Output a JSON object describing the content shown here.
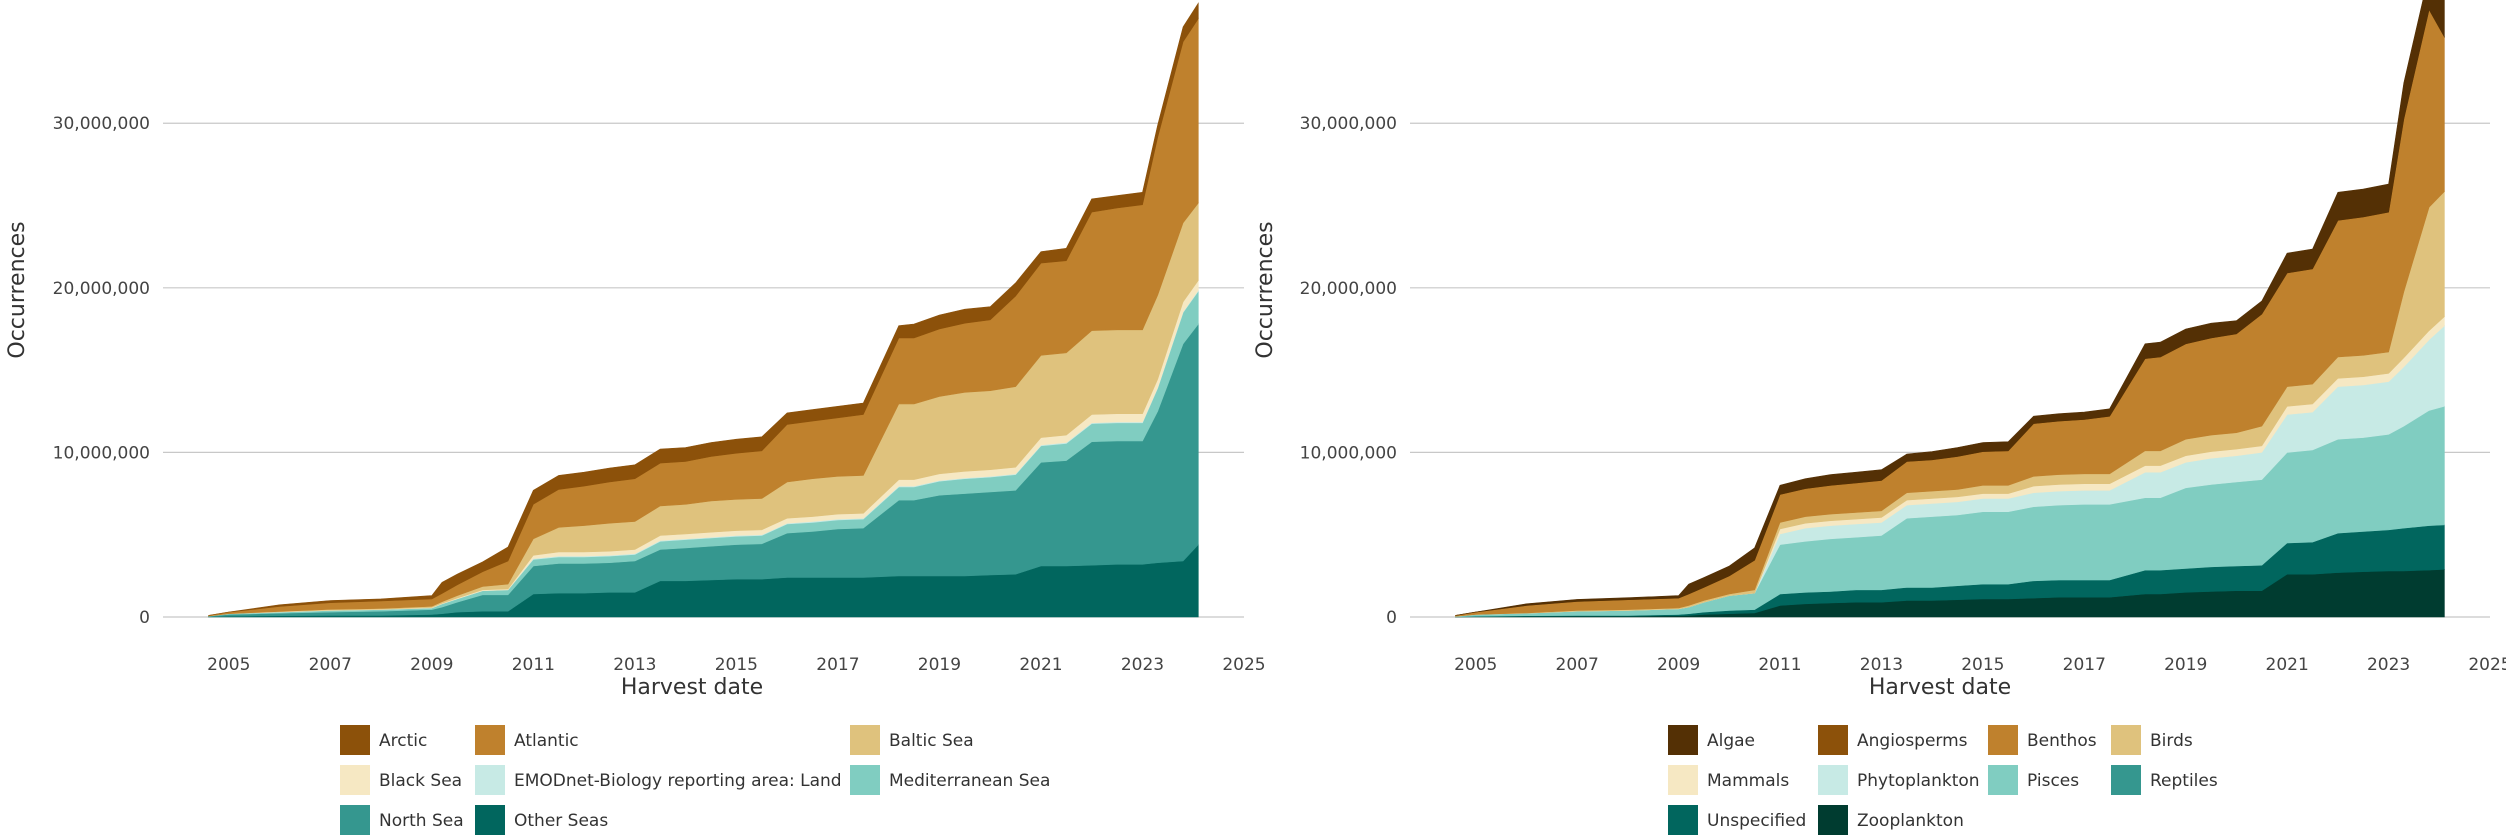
{
  "chart_data": [
    {
      "type": "area",
      "stacked": true,
      "title": "",
      "xlabel": "Harvest date",
      "ylabel": "Occurrences",
      "xlim": [
        2004,
        2025
      ],
      "ylim": [
        0,
        37000000
      ],
      "x_ticks": [
        2005,
        2007,
        2009,
        2011,
        2013,
        2015,
        2017,
        2019,
        2021,
        2023,
        2025
      ],
      "y_ticks": [
        0,
        10000000,
        20000000,
        30000000
      ],
      "y_tick_labels": [
        "0",
        "10,000,000",
        "20,000,000",
        "30,000,000"
      ],
      "grid": "horizontal",
      "legend": "bottom",
      "x": [
        2004.6,
        2005.0,
        2006.0,
        2007.0,
        2008.0,
        2009.0,
        2009.2,
        2009.5,
        2010.0,
        2010.5,
        2011.0,
        2011.5,
        2012.0,
        2012.5,
        2013.0,
        2013.5,
        2014.0,
        2014.5,
        2015.0,
        2015.5,
        2016.0,
        2016.5,
        2017.0,
        2017.5,
        2018.2,
        2018.5,
        2019.0,
        2019.5,
        2020.0,
        2020.5,
        2021.0,
        2021.5,
        2022.0,
        2022.5,
        2023.0,
        2023.3,
        2023.8,
        2024.1
      ],
      "series": [
        {
          "name": "Other Seas",
          "color": "#01665e",
          "values": [
            0.02,
            0.05,
            0.08,
            0.1,
            0.1,
            0.15,
            0.2,
            0.3,
            0.35,
            0.35,
            1.4,
            1.45,
            1.45,
            1.5,
            1.5,
            2.2,
            2.2,
            2.25,
            2.3,
            2.3,
            2.4,
            2.4,
            2.4,
            2.4,
            2.5,
            2.5,
            2.5,
            2.5,
            2.55,
            2.6,
            3.1,
            3.1,
            3.15,
            3.2,
            3.2,
            3.3,
            3.4,
            4.4
          ]
        },
        {
          "name": "North Sea",
          "color": "#35978f",
          "values": [
            0.03,
            0.1,
            0.15,
            0.2,
            0.25,
            0.3,
            0.4,
            0.6,
            1.0,
            1.0,
            1.7,
            1.8,
            1.8,
            1.8,
            1.9,
            1.9,
            2.0,
            2.05,
            2.1,
            2.15,
            2.7,
            2.8,
            2.95,
            3.0,
            4.6,
            4.6,
            4.9,
            5.0,
            5.05,
            5.1,
            6.3,
            6.4,
            7.5,
            7.5,
            7.5,
            9.2,
            13.2,
            13.4
          ]
        },
        {
          "name": "Mediterranean Sea",
          "color": "#80cdc1",
          "values": [
            0.01,
            0.05,
            0.07,
            0.1,
            0.1,
            0.1,
            0.2,
            0.2,
            0.25,
            0.3,
            0.4,
            0.4,
            0.4,
            0.4,
            0.4,
            0.5,
            0.5,
            0.5,
            0.5,
            0.5,
            0.55,
            0.55,
            0.55,
            0.55,
            0.8,
            0.8,
            0.85,
            0.9,
            0.9,
            0.95,
            1.0,
            1.05,
            1.1,
            1.1,
            1.1,
            1.4,
            1.9,
            2.0
          ]
        },
        {
          "name": "EMODnet-Biology reporting area: Land",
          "color": "#c7eae5",
          "values": [
            0.0,
            0.0,
            0.0,
            0.0,
            0.0,
            0.0,
            0.0,
            0.0,
            0.0,
            0.0,
            0.05,
            0.05,
            0.05,
            0.05,
            0.05,
            0.05,
            0.05,
            0.05,
            0.05,
            0.05,
            0.05,
            0.05,
            0.05,
            0.05,
            0.05,
            0.05,
            0.05,
            0.05,
            0.05,
            0.05,
            0.05,
            0.05,
            0.05,
            0.05,
            0.05,
            0.05,
            0.05,
            0.05
          ]
        },
        {
          "name": "Black Sea",
          "color": "#f6e8c3",
          "values": [
            0.0,
            0.0,
            0.02,
            0.02,
            0.02,
            0.03,
            0.03,
            0.05,
            0.05,
            0.05,
            0.2,
            0.25,
            0.25,
            0.25,
            0.25,
            0.3,
            0.3,
            0.3,
            0.3,
            0.3,
            0.3,
            0.3,
            0.3,
            0.3,
            0.4,
            0.4,
            0.4,
            0.4,
            0.4,
            0.4,
            0.45,
            0.45,
            0.5,
            0.5,
            0.5,
            0.5,
            0.6,
            0.6
          ]
        },
        {
          "name": "Baltic Sea",
          "color": "#dfc27d",
          "values": [
            0.0,
            0.0,
            0.02,
            0.05,
            0.05,
            0.07,
            0.1,
            0.15,
            0.2,
            0.3,
            1.0,
            1.5,
            1.6,
            1.7,
            1.7,
            1.8,
            1.8,
            1.9,
            1.9,
            1.9,
            2.2,
            2.3,
            2.3,
            2.3,
            4.6,
            4.6,
            4.7,
            4.8,
            4.8,
            4.9,
            5.0,
            5.0,
            5.1,
            5.1,
            5.1,
            5.1,
            4.8,
            4.7
          ]
        },
        {
          "name": "Atlantic",
          "color": "#bf812d",
          "values": [
            0.04,
            0.1,
            0.3,
            0.4,
            0.45,
            0.45,
            0.5,
            0.65,
            0.9,
            1.4,
            2.1,
            2.3,
            2.4,
            2.5,
            2.6,
            2.6,
            2.6,
            2.7,
            2.8,
            2.9,
            3.5,
            3.5,
            3.55,
            3.7,
            4.0,
            4.0,
            4.1,
            4.2,
            4.3,
            5.5,
            5.6,
            5.6,
            7.2,
            7.4,
            7.6,
            9.6,
            11.0,
            11.2
          ]
        },
        {
          "name": "Arctic",
          "color": "#8c510a",
          "values": [
            0.0,
            0.0,
            0.1,
            0.13,
            0.13,
            0.2,
            0.67,
            0.65,
            0.6,
            0.85,
            0.85,
            0.85,
            0.85,
            0.85,
            0.85,
            0.85,
            0.85,
            0.85,
            0.85,
            0.85,
            0.7,
            0.7,
            0.7,
            0.7,
            0.75,
            0.85,
            0.85,
            0.85,
            0.8,
            0.8,
            0.7,
            0.75,
            0.8,
            0.75,
            0.75,
            0.75,
            0.9,
            0.95
          ]
        }
      ],
      "legend_rows": [
        [
          "Arctic",
          "Atlantic",
          "Baltic Sea"
        ],
        [
          "Black Sea",
          "EMODnet-Biology reporting area: Land",
          "Mediterranean Sea"
        ],
        [
          "North Sea",
          "Other Seas"
        ]
      ]
    },
    {
      "type": "area",
      "stacked": true,
      "title": "",
      "xlabel": "Harvest date",
      "ylabel": "Occurrences",
      "xlim": [
        2004,
        2025
      ],
      "ylim": [
        0,
        37000000
      ],
      "x_ticks": [
        2005,
        2007,
        2009,
        2011,
        2013,
        2015,
        2017,
        2019,
        2021,
        2023,
        2025
      ],
      "y_ticks": [
        0,
        10000000,
        20000000,
        30000000
      ],
      "y_tick_labels": [
        "0",
        "10,000,000",
        "20,000,000",
        "30,000,000"
      ],
      "grid": "horizontal",
      "legend": "bottom",
      "x": [
        2004.6,
        2005.0,
        2006.0,
        2007.0,
        2008.0,
        2009.0,
        2009.2,
        2009.5,
        2010.0,
        2010.5,
        2011.0,
        2011.5,
        2012.0,
        2012.5,
        2013.0,
        2013.5,
        2014.0,
        2014.5,
        2015.0,
        2015.5,
        2016.0,
        2016.5,
        2017.0,
        2017.5,
        2018.2,
        2018.5,
        2019.0,
        2019.5,
        2020.0,
        2020.5,
        2021.0,
        2021.5,
        2022.0,
        2022.5,
        2023.0,
        2023.3,
        2023.8,
        2024.1
      ],
      "series": [
        {
          "name": "Zooplankton",
          "color": "#003c30",
          "values": [
            0.01,
            0.02,
            0.03,
            0.05,
            0.05,
            0.08,
            0.1,
            0.15,
            0.2,
            0.25,
            0.7,
            0.8,
            0.85,
            0.9,
            0.9,
            1.0,
            1.0,
            1.05,
            1.1,
            1.1,
            1.15,
            1.2,
            1.2,
            1.2,
            1.4,
            1.4,
            1.5,
            1.55,
            1.6,
            1.6,
            2.6,
            2.6,
            2.7,
            2.75,
            2.8,
            2.8,
            2.85,
            2.9
          ]
        },
        {
          "name": "Unspecified",
          "color": "#01665e",
          "values": [
            0.01,
            0.03,
            0.05,
            0.05,
            0.05,
            0.07,
            0.1,
            0.15,
            0.2,
            0.2,
            0.7,
            0.7,
            0.7,
            0.75,
            0.75,
            0.8,
            0.8,
            0.85,
            0.9,
            0.9,
            1.05,
            1.05,
            1.05,
            1.05,
            1.45,
            1.45,
            1.45,
            1.5,
            1.5,
            1.55,
            1.9,
            1.95,
            2.4,
            2.45,
            2.5,
            2.6,
            2.7,
            2.7
          ]
        },
        {
          "name": "Reptiles",
          "color": "#35978f",
          "values": [
            0.0,
            0.0,
            0.0,
            0.0,
            0.0,
            0.0,
            0.0,
            0.0,
            0.0,
            0.0,
            0.0,
            0.0,
            0.0,
            0.0,
            0.0,
            0.0,
            0.0,
            0.0,
            0.0,
            0.0,
            0.0,
            0.0,
            0.0,
            0.0,
            0.0,
            0.0,
            0.0,
            0.0,
            0.0,
            0.0,
            0.0,
            0.0,
            0.0,
            0.0,
            0.0,
            0.0,
            0.0,
            0.0
          ]
        },
        {
          "name": "Pisces",
          "color": "#80cdc1",
          "values": [
            0.02,
            0.1,
            0.15,
            0.25,
            0.3,
            0.35,
            0.4,
            0.6,
            0.9,
            1.0,
            3.0,
            3.1,
            3.2,
            3.2,
            3.3,
            4.2,
            4.3,
            4.3,
            4.4,
            4.4,
            4.5,
            4.55,
            4.6,
            4.6,
            4.4,
            4.4,
            4.9,
            5.0,
            5.1,
            5.2,
            5.5,
            5.6,
            5.7,
            5.7,
            5.8,
            6.2,
            7.0,
            7.2
          ]
        },
        {
          "name": "Phytoplankton",
          "color": "#c7eae5",
          "values": [
            0.0,
            0.0,
            0.0,
            0.0,
            0.0,
            0.0,
            0.0,
            0.0,
            0.0,
            0.0,
            0.65,
            0.8,
            0.8,
            0.8,
            0.8,
            0.8,
            0.8,
            0.8,
            0.8,
            0.8,
            0.85,
            0.85,
            0.85,
            0.85,
            1.55,
            1.55,
            1.55,
            1.6,
            1.6,
            1.65,
            2.3,
            2.3,
            3.2,
            3.2,
            3.2,
            3.6,
            4.3,
            4.9
          ]
        },
        {
          "name": "Mammals",
          "color": "#f6e8c3",
          "values": [
            0.0,
            0.0,
            0.0,
            0.0,
            0.0,
            0.0,
            0.0,
            0.0,
            0.0,
            0.0,
            0.3,
            0.3,
            0.3,
            0.3,
            0.3,
            0.3,
            0.3,
            0.3,
            0.3,
            0.3,
            0.4,
            0.4,
            0.4,
            0.4,
            0.4,
            0.4,
            0.4,
            0.4,
            0.4,
            0.4,
            0.5,
            0.5,
            0.5,
            0.5,
            0.5,
            0.55,
            0.55,
            0.55
          ]
        },
        {
          "name": "Birds",
          "color": "#dfc27d",
          "values": [
            0.0,
            0.0,
            0.02,
            0.05,
            0.05,
            0.05,
            0.1,
            0.1,
            0.1,
            0.2,
            0.4,
            0.4,
            0.4,
            0.4,
            0.4,
            0.45,
            0.45,
            0.45,
            0.5,
            0.5,
            0.6,
            0.6,
            0.6,
            0.6,
            0.9,
            0.9,
            1.0,
            1.0,
            1.0,
            1.2,
            1.2,
            1.2,
            1.3,
            1.3,
            1.3,
            4.0,
            7.5,
            7.6
          ]
        },
        {
          "name": "Benthos",
          "color": "#bf812d",
          "values": [
            0.06,
            0.15,
            0.45,
            0.55,
            0.6,
            0.6,
            0.7,
            0.8,
            1.1,
            1.8,
            1.7,
            1.7,
            1.75,
            1.8,
            1.85,
            1.9,
            1.9,
            2.0,
            2.05,
            2.1,
            3.2,
            3.25,
            3.3,
            3.5,
            5.6,
            5.7,
            5.8,
            5.9,
            6.0,
            6.8,
            6.9,
            7.0,
            8.3,
            8.4,
            8.5,
            10.5,
            12.0,
            9.4
          ]
        },
        {
          "name": "Angiosperms",
          "color": "#8c510a",
          "values": [
            0.0,
            0.0,
            0.0,
            0.0,
            0.0,
            0.0,
            0.0,
            0.0,
            0.0,
            0.0,
            0.0,
            0.0,
            0.0,
            0.0,
            0.0,
            0.0,
            0.0,
            0.0,
            0.0,
            0.0,
            0.0,
            0.0,
            0.0,
            0.0,
            0.0,
            0.0,
            0.0,
            0.0,
            0.0,
            0.0,
            0.0,
            0.0,
            0.0,
            0.0,
            0.0,
            0.0,
            0.0,
            0.0
          ]
        },
        {
          "name": "Algae",
          "color": "#543005",
          "values": [
            0.0,
            0.0,
            0.1,
            0.12,
            0.12,
            0.15,
            0.6,
            0.6,
            0.6,
            0.75,
            0.55,
            0.6,
            0.65,
            0.65,
            0.65,
            0.45,
            0.5,
            0.55,
            0.55,
            0.55,
            0.45,
            0.45,
            0.45,
            0.45,
            0.9,
            0.9,
            0.9,
            0.9,
            0.8,
            0.8,
            1.2,
            1.2,
            1.7,
            1.7,
            1.7,
            2.2,
            2.2,
            2.3
          ]
        }
      ],
      "legend_rows": [
        [
          "Algae",
          "Angiosperms",
          "Benthos",
          "Birds"
        ],
        [
          "Mammals",
          "Phytoplankton",
          "Pisces",
          "Reptiles"
        ],
        [
          "Unspecified",
          "Zooplankton"
        ]
      ]
    }
  ]
}
